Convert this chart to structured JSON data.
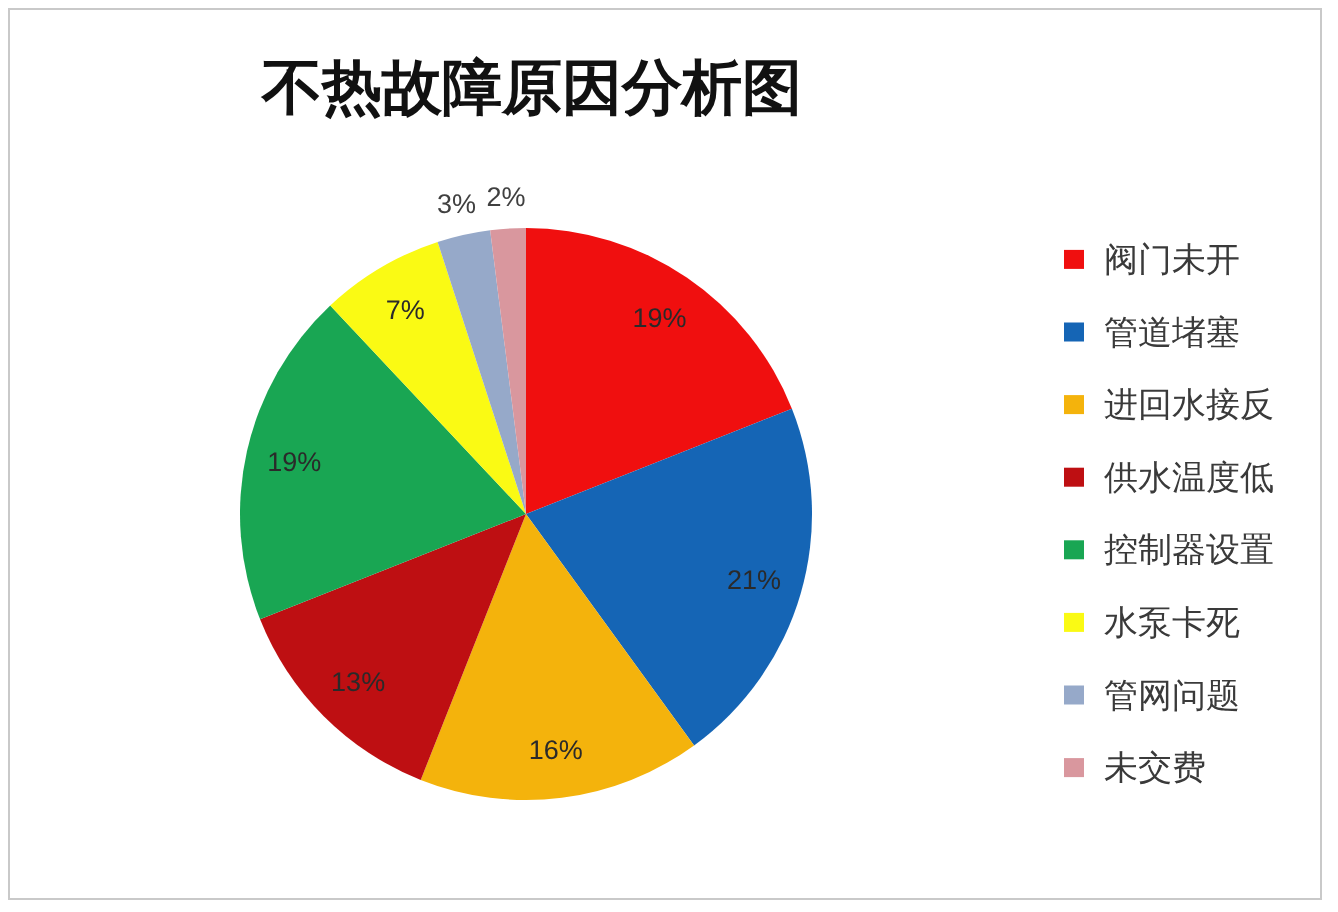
{
  "chart_data": {
    "type": "pie",
    "title": "不热故障原因分析图",
    "categories": [
      "阀门未开",
      "管道堵塞",
      "进回水接反",
      "供水温度低",
      "控制器设置",
      "水泵卡死",
      "管网问题",
      "未交费"
    ],
    "values": [
      19,
      21,
      16,
      13,
      19,
      7,
      3,
      2
    ],
    "colors": [
      "#f00f0f",
      "#1565b5",
      "#f4b30c",
      "#be0f12",
      "#19a653",
      "#fafa14",
      "#96a9c9",
      "#d9979e"
    ],
    "value_labels": [
      "19%",
      "21%",
      "16%",
      "13%",
      "19%",
      "7%",
      "3%",
      "2%"
    ],
    "legend": "right"
  }
}
